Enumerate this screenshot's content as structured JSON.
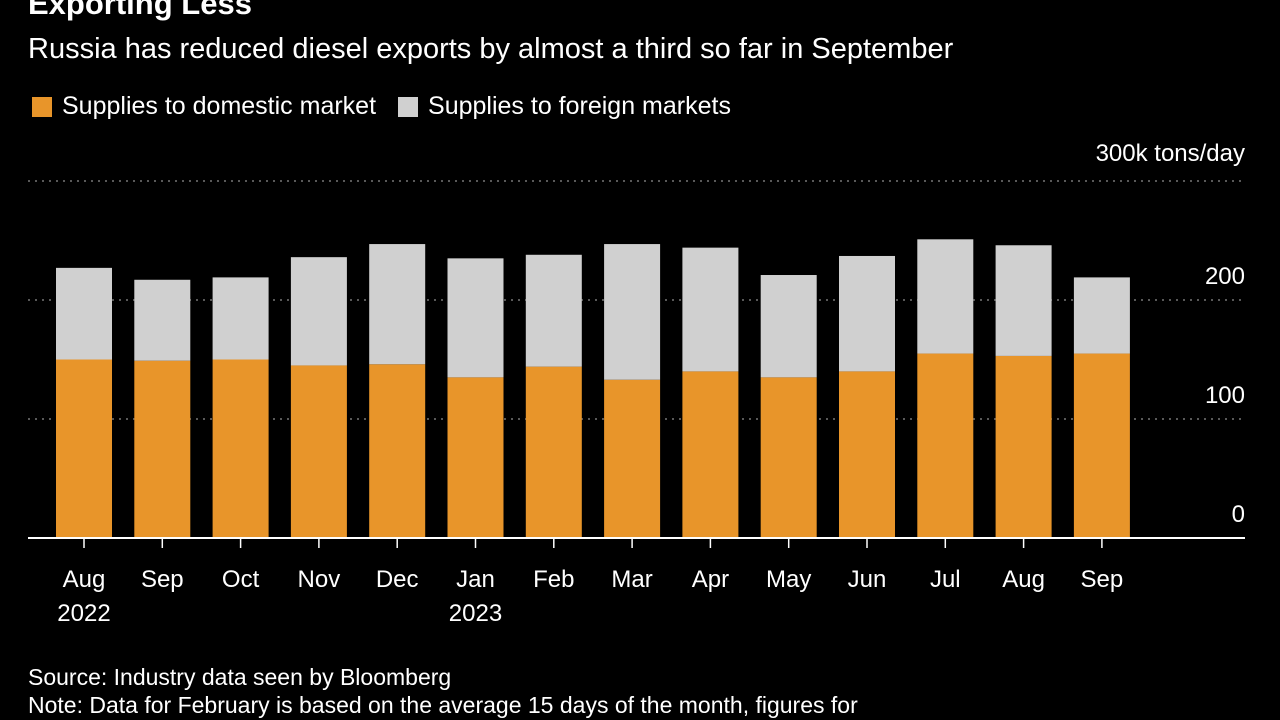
{
  "title": "Exporting Less",
  "subtitle": "Russia has reduced diesel exports by almost a third so far in September",
  "source": "Source: Industry data seen by Bloomberg",
  "note": "Note: Data for February is based on the average 15 days of the month, figures for",
  "colors": {
    "domestic": "#e8952a",
    "foreign": "#d0d0d0",
    "background": "#000000",
    "grid": "#777777",
    "text": "#ffffff"
  },
  "chart_data": {
    "type": "bar",
    "stacked": true,
    "unit_label": "300k tons/day",
    "categories": [
      "Aug",
      "Sep",
      "Oct",
      "Nov",
      "Dec",
      "Jan",
      "Feb",
      "Mar",
      "Apr",
      "May",
      "Jun",
      "Jul",
      "Aug",
      "Sep"
    ],
    "year_labels": [
      "2022",
      "",
      "",
      "",
      "",
      "2023",
      "",
      "",
      "",
      "",
      "",
      "",
      "",
      ""
    ],
    "series": [
      {
        "name": "Supplies to domestic market",
        "color": "#e8952a",
        "values": [
          150,
          149,
          150,
          145,
          146,
          135,
          144,
          133,
          140,
          135,
          140,
          155,
          153,
          155
        ]
      },
      {
        "name": "Supplies to foreign markets",
        "color": "#d0d0d0",
        "values": [
          77,
          68,
          69,
          91,
          101,
          100,
          94,
          114,
          104,
          86,
          97,
          96,
          93,
          64
        ]
      }
    ],
    "y_ticks": [
      0,
      100,
      200
    ],
    "y_max_label": "300k tons/day",
    "ylim": [
      0,
      300
    ],
    "grid": true,
    "legend_position": "top-left"
  }
}
